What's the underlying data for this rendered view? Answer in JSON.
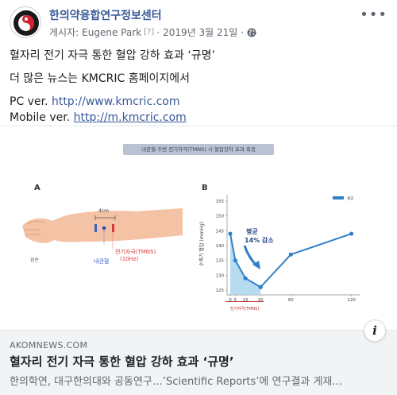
{
  "header": {
    "page_name": "한의약융합연구정보센터",
    "posted_by_prefix": "게시자:",
    "posted_by": "Eugene Park",
    "bracket_mark": "[?]",
    "date": "2019년 3월 21일",
    "separator": "·",
    "more_icon": "more-horizontal-icon",
    "privacy_icon": "globe-icon"
  },
  "post": {
    "line1": "혈자리 전기 자극 통한 혈압 강하 효과 ‘규명’",
    "line2": "더 많은 뉴스는 KMCRIC 홈페이지에서",
    "pc_label": "PC ver.",
    "pc_url": "http://www.kmcric.com",
    "mobile_label": "Mobile ver.",
    "mobile_url": "http://m.kmcric.com"
  },
  "figure": {
    "title": "내관혈 주변 전기자극(TMNS) 시 혈압강하 효과 측정",
    "panel_a": {
      "label": "A",
      "measure": "4cm",
      "point_label": "내관혈",
      "stim_label_1": "전기자극(TMNS)",
      "stim_label_2": "(10Hz)",
      "hand_label": "왼손"
    },
    "panel_b": {
      "label": "B",
      "annotation_1": "평균",
      "annotation_2": "14% 감소",
      "legend_label": "혈압",
      "x_range_label": "전기자극(TMNS)"
    }
  },
  "chart_data": {
    "type": "line",
    "title": "",
    "xlabel": "",
    "ylabel": "수축기 혈압 (mmHg)",
    "x": [
      0,
      5,
      15,
      30,
      60,
      120
    ],
    "x_ticks": [
      "0",
      "5",
      "15",
      "30",
      "60",
      "120"
    ],
    "y_ticks": [
      "125",
      "130",
      "135",
      "140",
      "145",
      "150",
      "155"
    ],
    "ylim": [
      125,
      155
    ],
    "series": [
      {
        "name": "혈압",
        "values": [
          144,
          135,
          129,
          126,
          137,
          144
        ]
      }
    ],
    "line_color": "#2f80c9",
    "fill_color": "#9fd0ee",
    "grid": false,
    "legend": "top-right"
  },
  "link_preview": {
    "domain": "AKOMNEWS.COM",
    "title": "혈자리 전기 자극 통한 혈압 강하 효과 ‘규명’",
    "description": "한의학연, 대구한의대와 공동연구…’Scientific Reports’에 연구결과 게재...",
    "info_icon": "info-icon",
    "info_glyph": "i"
  }
}
